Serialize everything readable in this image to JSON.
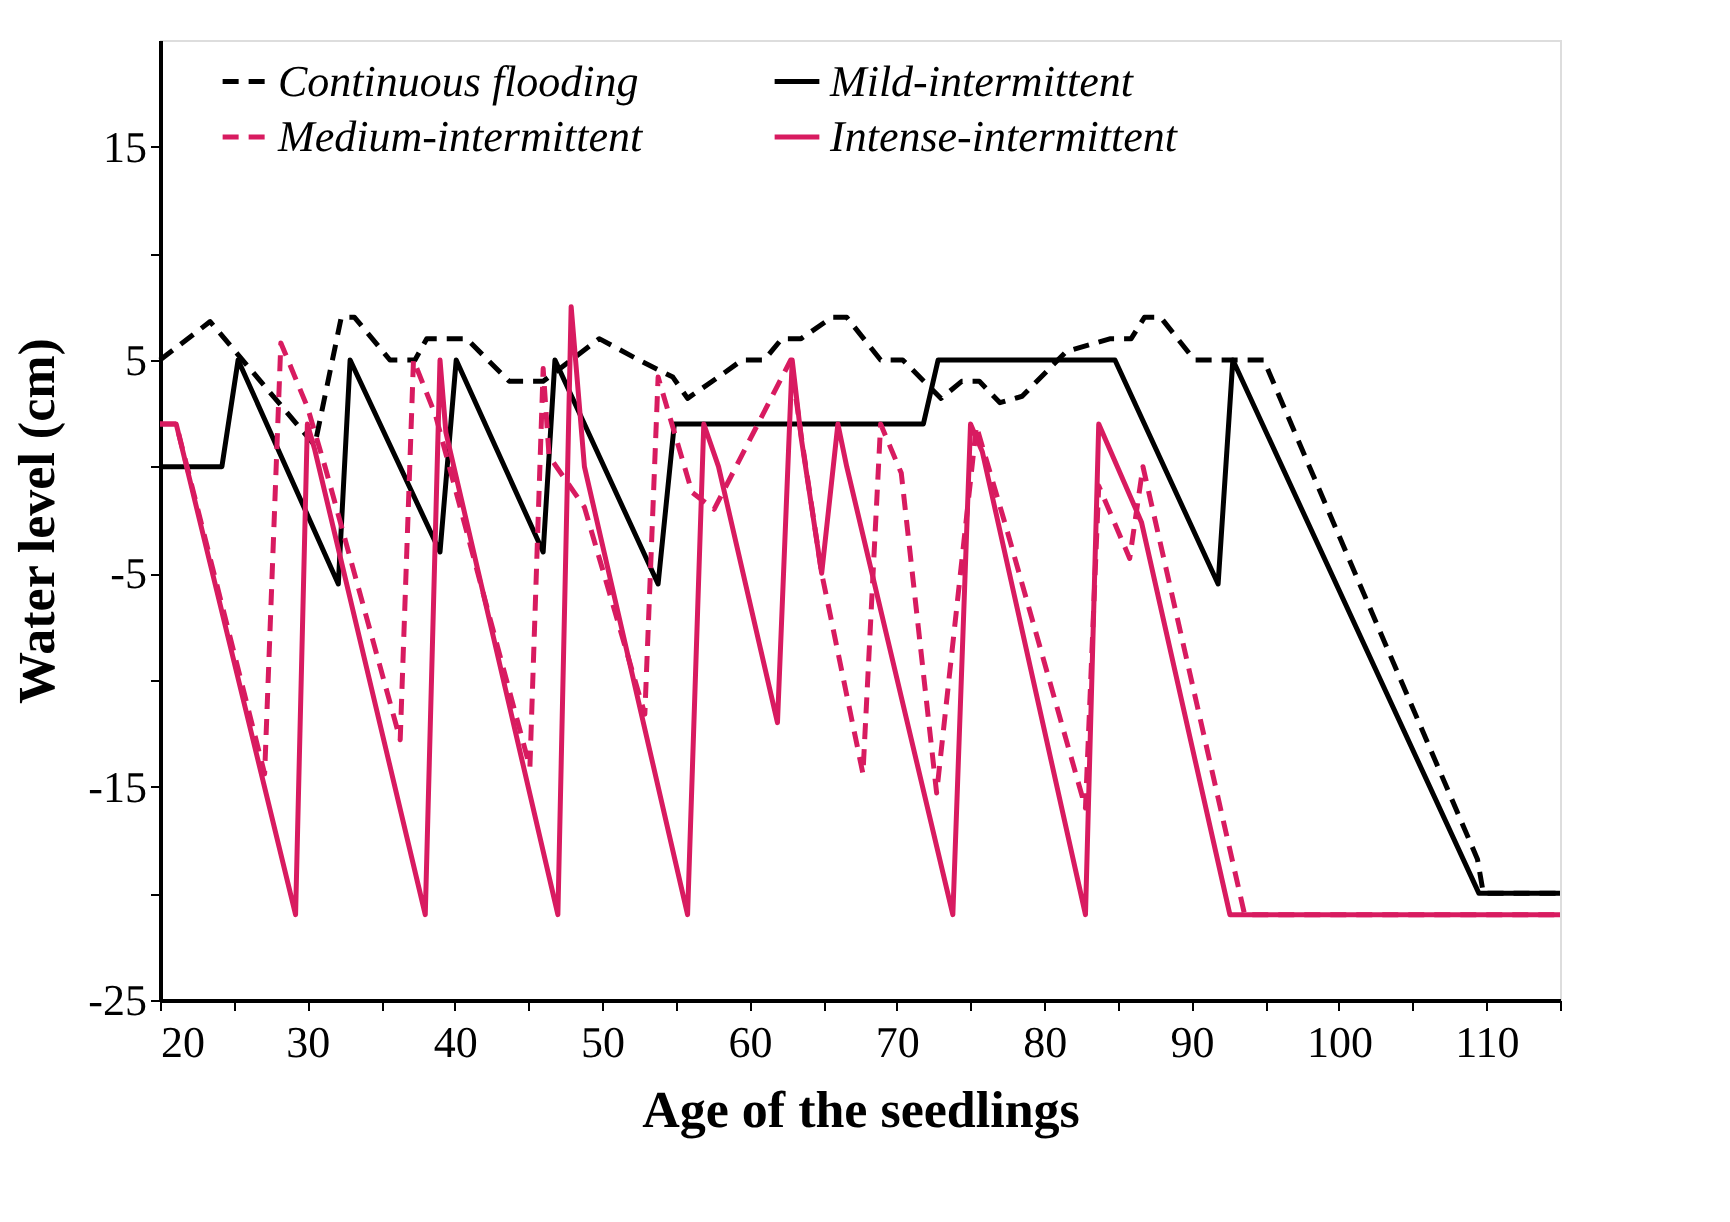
{
  "chart_data": {
    "type": "line",
    "xlabel": "Age of the seedlings",
    "ylabel": "Water level (cm)",
    "xlim": [
      20,
      115
    ],
    "xticks": [
      20,
      {
        "value": 25,
        "label": null
      },
      30,
      {
        "value": 35,
        "label": null
      },
      40,
      {
        "value": 45,
        "label": null
      },
      50,
      {
        "value": 55,
        "label": null
      },
      60,
      {
        "value": 65,
        "label": null
      },
      70,
      {
        "value": 75,
        "label": null
      },
      80,
      {
        "value": 85,
        "label": null
      },
      90,
      {
        "value": 95,
        "label": null
      },
      100,
      {
        "value": 105,
        "label": null
      },
      110,
      {
        "value": 115,
        "label": null
      }
    ],
    "ylim": [
      -25,
      20
    ],
    "yticks": [
      -25,
      {
        "value": -20,
        "label": null
      },
      -15,
      {
        "value": -10,
        "label": null
      },
      -5,
      {
        "value": 0,
        "label": null
      },
      5,
      {
        "value": 10,
        "label": null
      },
      15
    ],
    "grid": false,
    "legend": "top",
    "marker": "none",
    "series": [
      {
        "name": "Continuous flooding",
        "color": "#000000",
        "line_style": "dashed",
        "x": [
          20,
          23.4,
          30.5,
          32.3,
          33.2,
          35.6,
          37.3,
          38.1,
          40.8,
          43.7,
          46,
          49.8,
          52.5,
          54.8,
          55.8,
          58.3,
          59.5,
          61,
          62.2,
          63.5,
          65.6,
          66.6,
          68.9,
          70.4,
          73,
          74.4,
          75.6,
          77,
          78.5,
          81.5,
          84.5,
          85.9,
          86.8,
          87.9,
          90.2,
          94.9,
          109.4,
          109.8,
          115
        ],
        "values": [
          5,
          6.8,
          1,
          7,
          7,
          5,
          5,
          6,
          6,
          4,
          4,
          6,
          5,
          4.2,
          3.2,
          4.4,
          5,
          5,
          6,
          6,
          7,
          7,
          5,
          5,
          3.2,
          4,
          4,
          3,
          3.3,
          5.4,
          6,
          6,
          7,
          7,
          5,
          5,
          -18.4,
          -20,
          -20
        ]
      },
      {
        "name": "Mild-intermittent",
        "color": "#000000",
        "line_style": "solid",
        "x": [
          20,
          24.2,
          25.3,
          32.1,
          32.9,
          39,
          40.1,
          46,
          46.8,
          53.8,
          54.9,
          71.8,
          72.8,
          84.8,
          91.8,
          92.8,
          109.5,
          115
        ],
        "values": [
          0,
          0,
          5,
          -5.5,
          5,
          -4,
          5,
          -4,
          5,
          -5.5,
          2,
          2,
          5,
          5,
          -5.5,
          5,
          -20,
          -20
        ]
      },
      {
        "name": "Medium-intermittent",
        "color": "#d81b60",
        "line_style": "dashed",
        "x": [
          20,
          21.1,
          27.1,
          28.2,
          30,
          31.2,
          36.3,
          37.2,
          38.7,
          45.1,
          46,
          46.4,
          48.8,
          52.9,
          53.8,
          56.1,
          57.6,
          62.8,
          63.5,
          64.9,
          67.7,
          68.9,
          70.3,
          72.7,
          75.4,
          77.4,
          82.8,
          83.7,
          85.8,
          86.7,
          93.6,
          115
        ],
        "values": [
          2,
          2,
          -14.4,
          5.8,
          2.8,
          0,
          -12.8,
          5,
          2.4,
          -14.1,
          4.6,
          0.5,
          -1.9,
          -11.6,
          4.2,
          -1.2,
          -2,
          5,
          1.5,
          -5,
          -14.4,
          2,
          -0.3,
          -15.3,
          1.9,
          -2.8,
          -16,
          -0.9,
          -4.3,
          0,
          -21,
          -21
        ]
      },
      {
        "name": "Intense-intermittent",
        "color": "#d81b60",
        "line_style": "solid",
        "x": [
          20,
          21.1,
          29.2,
          30,
          30.5,
          38,
          39,
          39.4,
          47,
          47.9,
          48.8,
          55.8,
          56.9,
          57.9,
          61.9,
          62.9,
          63.5,
          64.9,
          66,
          66.6,
          73.8,
          75,
          75.8,
          82.8,
          83.7,
          86.6,
          92.6,
          115
        ],
        "values": [
          2,
          2,
          -21,
          2,
          0.8,
          -21,
          5,
          1.6,
          -21,
          7.5,
          0,
          -21,
          2,
          0,
          -12,
          5,
          1.4,
          -5,
          2,
          0,
          -21,
          2,
          0.7,
          -21,
          2,
          -2.6,
          -21,
          -21
        ]
      }
    ]
  }
}
